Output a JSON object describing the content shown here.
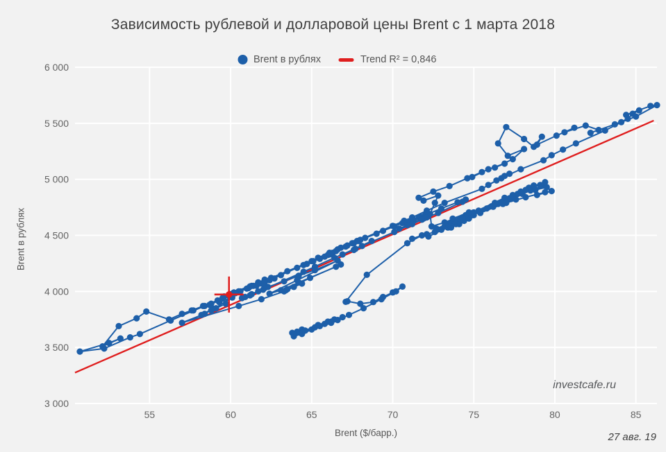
{
  "watermark": "investcafe.ru",
  "date_note": "27 авг. 19",
  "colors": {
    "background": "#f2f2f2",
    "gridline": "#ffffff",
    "series_blue": "#1d5fa9",
    "trend_red": "#df1e1e",
    "title_text": "#3e3e3e",
    "tick_text": "#636363"
  },
  "chart_data": {
    "type": "scatter",
    "title": "Зависимость рублевой и долларовой цены Brent с 1 марта 2018",
    "xlabel": "Brent ($/барр.)",
    "ylabel": "Brent в рублях",
    "xlim": [
      50.4,
      86.3
    ],
    "ylim": [
      3000,
      6000
    ],
    "grid": "white gridlines on light gray panel",
    "x_ticks": {
      "values": [
        55,
        60,
        65,
        70,
        75,
        80,
        85
      ],
      "labels": [
        "55",
        "60",
        "65",
        "70",
        "75",
        "80",
        "85"
      ]
    },
    "y_ticks": {
      "values": [
        3000,
        3500,
        4000,
        4500,
        5000,
        5500,
        6000
      ],
      "labels": [
        "3 000",
        "3 500",
        "4 000",
        "4 500",
        "5 000",
        "5 500",
        "6 000"
      ]
    },
    "legend": {
      "position": "top-center",
      "items": [
        {
          "label": "Brent в рублях",
          "marker": "circle",
          "color": "#1d5fa9"
        },
        {
          "label": "Trend R² = 0,846",
          "marker": "dash",
          "color": "#df1e1e"
        }
      ]
    },
    "trend_line": {
      "color": "#df1e1e",
      "r2_label": "0,846",
      "x_start": 50.4,
      "y_start": 3275,
      "x_end": 86.1,
      "y_end": 5524
    },
    "current_point": {
      "x": 59.9,
      "y": 3972,
      "marker": "cross",
      "color": "#df1e1e"
    },
    "series": [
      {
        "name": "Brent в рублях",
        "mode": "lines+markers",
        "color": "#1d5fa9",
        "points": [
          [
            63.8,
            3630
          ],
          [
            64.4,
            3660
          ],
          [
            64.1,
            3640
          ],
          [
            63.9,
            3617
          ],
          [
            64.5,
            3645
          ],
          [
            65.2,
            3680
          ],
          [
            65.0,
            3660
          ],
          [
            64.4,
            3620
          ],
          [
            63.9,
            3600
          ],
          [
            64.6,
            3650
          ],
          [
            65.4,
            3700
          ],
          [
            66.0,
            3730
          ],
          [
            66.4,
            3750
          ],
          [
            65.8,
            3710
          ],
          [
            66.2,
            3730
          ],
          [
            66.9,
            3770
          ],
          [
            66.2,
            3720
          ],
          [
            65.5,
            3690
          ],
          [
            66.6,
            3745
          ],
          [
            67.3,
            3790
          ],
          [
            68.2,
            3850
          ],
          [
            69.3,
            3930
          ],
          [
            70.2,
            4000
          ],
          [
            70.6,
            4043
          ],
          [
            70.0,
            3990
          ],
          [
            69.4,
            3950
          ],
          [
            68.8,
            3905
          ],
          [
            68.0,
            3890
          ],
          [
            67.2,
            3912
          ],
          [
            67.1,
            3907
          ],
          [
            68.4,
            4148
          ],
          [
            70.9,
            4430
          ],
          [
            71.8,
            4500
          ],
          [
            71.2,
            4470
          ],
          [
            72.1,
            4510
          ],
          [
            72.6,
            4530
          ],
          [
            73.0,
            4550
          ],
          [
            72.2,
            4490
          ],
          [
            73.4,
            4570
          ],
          [
            74.1,
            4600
          ],
          [
            73.6,
            4570
          ],
          [
            74.4,
            4630
          ],
          [
            73.9,
            4600
          ],
          [
            74.7,
            4650
          ],
          [
            74.0,
            4610
          ],
          [
            74.6,
            4655
          ],
          [
            75.0,
            4680
          ],
          [
            74.9,
            4700
          ],
          [
            76.1,
            4760
          ],
          [
            77.2,
            4830
          ],
          [
            78.0,
            4870
          ],
          [
            77.3,
            4825
          ],
          [
            77.5,
            4840
          ],
          [
            78.5,
            4900
          ],
          [
            79.3,
            4945
          ],
          [
            78.8,
            4905
          ],
          [
            79.5,
            4930
          ],
          [
            79.8,
            4895
          ],
          [
            78.9,
            4860
          ],
          [
            79.4,
            4885
          ],
          [
            78.2,
            4840
          ],
          [
            77.0,
            4790
          ],
          [
            76.2,
            4755
          ],
          [
            75.4,
            4700
          ],
          [
            76.8,
            4780
          ],
          [
            77.6,
            4820
          ],
          [
            76.8,
            4800
          ],
          [
            75.4,
            4710
          ],
          [
            74.6,
            4660
          ],
          [
            73.8,
            4610
          ],
          [
            74.9,
            4680
          ],
          [
            76.5,
            4780
          ],
          [
            75.8,
            4740
          ],
          [
            74.1,
            4630
          ],
          [
            73.2,
            4580
          ],
          [
            74.2,
            4645
          ],
          [
            75.3,
            4720
          ],
          [
            76.3,
            4790
          ],
          [
            77.7,
            4870
          ],
          [
            79.1,
            4950
          ],
          [
            78.4,
            4925
          ],
          [
            79.4,
            4975
          ],
          [
            77.9,
            4890
          ],
          [
            78.2,
            4905
          ],
          [
            77.4,
            4860
          ],
          [
            78.7,
            4945
          ],
          [
            76.9,
            4835
          ],
          [
            75.0,
            4705
          ],
          [
            73.4,
            4600
          ],
          [
            74.4,
            4665
          ],
          [
            73.6,
            4615
          ],
          [
            72.7,
            4560
          ],
          [
            73.8,
            4625
          ],
          [
            74.5,
            4680
          ],
          [
            74.3,
            4660
          ],
          [
            74.9,
            4695
          ],
          [
            74.3,
            4655
          ],
          [
            73.7,
            4650
          ],
          [
            74.7,
            4705
          ],
          [
            73.2,
            4615
          ],
          [
            72.4,
            4580
          ],
          [
            72.3,
            4690
          ],
          [
            72.6,
            4790
          ],
          [
            72.8,
            4855
          ],
          [
            71.9,
            4810
          ],
          [
            71.6,
            4835
          ],
          [
            72.5,
            4890
          ],
          [
            73.5,
            4940
          ],
          [
            74.6,
            5010
          ],
          [
            75.5,
            5065
          ],
          [
            74.9,
            5020
          ],
          [
            75.9,
            5090
          ],
          [
            76.9,
            5140
          ],
          [
            76.3,
            5105
          ],
          [
            77.4,
            5180
          ],
          [
            78.1,
            5270
          ],
          [
            77.1,
            5210
          ],
          [
            76.5,
            5320
          ],
          [
            77.0,
            5466
          ],
          [
            78.1,
            5360
          ],
          [
            78.7,
            5290
          ],
          [
            79.2,
            5380
          ],
          [
            78.9,
            5310
          ],
          [
            80.1,
            5390
          ],
          [
            81.2,
            5460
          ],
          [
            80.6,
            5420
          ],
          [
            81.9,
            5480
          ],
          [
            82.7,
            5440
          ],
          [
            82.2,
            5415
          ],
          [
            83.7,
            5490
          ],
          [
            84.5,
            5540
          ],
          [
            84.8,
            5585
          ],
          [
            85.2,
            5615
          ],
          [
            84.4,
            5575
          ],
          [
            85.9,
            5655
          ],
          [
            86.3,
            5662
          ],
          [
            85.0,
            5560
          ],
          [
            84.1,
            5510
          ],
          [
            83.1,
            5435
          ],
          [
            81.3,
            5320
          ],
          [
            80.5,
            5265
          ],
          [
            79.8,
            5215
          ],
          [
            79.3,
            5170
          ],
          [
            77.9,
            5090
          ],
          [
            76.7,
            5010
          ],
          [
            77.2,
            5050
          ],
          [
            76.4,
            4990
          ],
          [
            75.9,
            4950
          ],
          [
            76.9,
            5030
          ],
          [
            75.5,
            4915
          ],
          [
            73.2,
            4790
          ],
          [
            72.1,
            4720
          ],
          [
            71.2,
            4660
          ],
          [
            70.7,
            4630
          ],
          [
            70.0,
            4585
          ],
          [
            67.8,
            4450
          ],
          [
            66.1,
            4345
          ],
          [
            65.4,
            4300
          ],
          [
            66.8,
            4390
          ],
          [
            66.6,
            4375
          ],
          [
            65.0,
            4270
          ],
          [
            63.5,
            4180
          ],
          [
            62.5,
            4120
          ],
          [
            62.1,
            4095
          ],
          [
            60.6,
            4000
          ],
          [
            58.8,
            3890
          ],
          [
            59.5,
            3935
          ],
          [
            60.3,
            3985
          ],
          [
            58.7,
            3880
          ],
          [
            61.7,
            4080
          ],
          [
            62.1,
            4105
          ],
          [
            60.2,
            3990
          ],
          [
            60.0,
            3975
          ],
          [
            61.3,
            4050
          ],
          [
            60.5,
            4000
          ],
          [
            59.5,
            3940
          ],
          [
            60.1,
            3980
          ],
          [
            58.4,
            3870
          ],
          [
            56.3,
            3740
          ],
          [
            57.7,
            3830
          ],
          [
            54.4,
            3620
          ],
          [
            53.8,
            3590
          ],
          [
            52.2,
            3490
          ],
          [
            50.7,
            3463
          ],
          [
            52.5,
            3540
          ],
          [
            53.2,
            3580
          ],
          [
            52.1,
            3510
          ],
          [
            53.1,
            3690
          ],
          [
            54.2,
            3760
          ],
          [
            54.8,
            3820
          ],
          [
            56.2,
            3750
          ],
          [
            57.0,
            3800
          ],
          [
            57.6,
            3830
          ],
          [
            58.3,
            3870
          ],
          [
            59.2,
            3920
          ],
          [
            59.9,
            3960
          ],
          [
            60.5,
            4000
          ],
          [
            61.1,
            4030
          ],
          [
            60.3,
            3985
          ],
          [
            61.0,
            4025
          ],
          [
            61.4,
            4050
          ],
          [
            61.7,
            4075
          ],
          [
            61.2,
            4045
          ],
          [
            61.9,
            4070
          ],
          [
            62.7,
            4115
          ],
          [
            62.4,
            4100
          ],
          [
            61.6,
            4050
          ],
          [
            62.1,
            4080
          ],
          [
            63.1,
            4145
          ],
          [
            64.1,
            4210
          ],
          [
            64.7,
            4245
          ],
          [
            66.1,
            4330
          ],
          [
            66.3,
            4345
          ],
          [
            65.1,
            4270
          ],
          [
            64.5,
            4235
          ],
          [
            65.8,
            4310
          ],
          [
            66.0,
            4325
          ],
          [
            65.5,
            4290
          ],
          [
            66.5,
            4360
          ],
          [
            67.5,
            4430
          ],
          [
            67.2,
            4410
          ],
          [
            66.2,
            4340
          ],
          [
            67.1,
            4400
          ],
          [
            67.6,
            4430
          ],
          [
            67.9,
            4450
          ],
          [
            68.3,
            4478
          ],
          [
            68.0,
            4460
          ],
          [
            69.0,
            4515
          ],
          [
            69.4,
            4540
          ],
          [
            70.1,
            4580
          ],
          [
            70.6,
            4610
          ],
          [
            71.2,
            4640
          ],
          [
            70.9,
            4620
          ],
          [
            71.6,
            4660
          ],
          [
            71.7,
            4668
          ],
          [
            71.3,
            4635
          ],
          [
            72.0,
            4680
          ],
          [
            73.0,
            4740
          ],
          [
            74.0,
            4795
          ],
          [
            74.5,
            4820
          ],
          [
            74.3,
            4800
          ],
          [
            72.8,
            4700
          ],
          [
            71.9,
            4650
          ],
          [
            70.9,
            4590
          ],
          [
            70.4,
            4560
          ],
          [
            71.2,
            4600
          ],
          [
            72.1,
            4660
          ],
          [
            71.8,
            4640
          ],
          [
            70.1,
            4530
          ],
          [
            68.1,
            4405
          ],
          [
            67.6,
            4370
          ],
          [
            66.9,
            4330
          ],
          [
            68.7,
            4450
          ],
          [
            67.7,
            4380
          ],
          [
            66.4,
            4300
          ],
          [
            64.5,
            4175
          ],
          [
            65.2,
            4220
          ],
          [
            62.0,
            4015
          ],
          [
            61.3,
            3975
          ],
          [
            60.7,
            3940
          ],
          [
            62.3,
            4040
          ],
          [
            61.7,
            4000
          ],
          [
            60.9,
            3950
          ],
          [
            61.2,
            3965
          ],
          [
            62.1,
            4030
          ],
          [
            63.3,
            4090
          ],
          [
            64.2,
            4140
          ],
          [
            65.2,
            4190
          ],
          [
            66.6,
            4275
          ],
          [
            64.1,
            4100
          ],
          [
            62.4,
            3980
          ],
          [
            63.1,
            4010
          ],
          [
            64.2,
            4080
          ],
          [
            66.5,
            4220
          ],
          [
            66.8,
            4240
          ],
          [
            64.9,
            4120
          ],
          [
            63.5,
            4020
          ],
          [
            63.4,
            4010
          ],
          [
            64.4,
            4070
          ],
          [
            63.9,
            4040
          ],
          [
            63.3,
            4000
          ],
          [
            61.9,
            3930
          ],
          [
            60.5,
            3870
          ],
          [
            57.0,
            3720
          ],
          [
            58.4,
            3800
          ],
          [
            58.9,
            3845
          ],
          [
            58.2,
            3790
          ],
          [
            59.7,
            3890
          ],
          [
            59.1,
            3850
          ],
          [
            58.8,
            3830
          ],
          [
            60.1,
            3945
          ],
          [
            59.3,
            3905
          ],
          [
            59.6,
            3955
          ],
          [
            59.9,
            3972
          ]
        ]
      }
    ]
  }
}
